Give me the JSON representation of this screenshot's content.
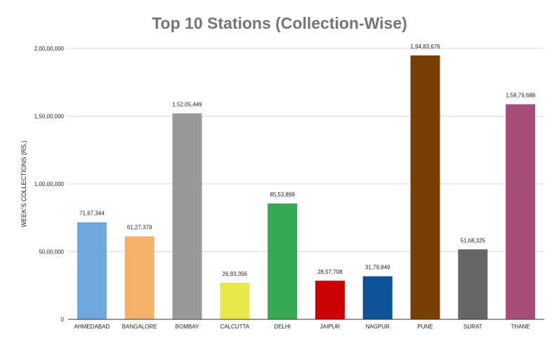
{
  "chart_data": {
    "type": "bar",
    "title": "Top 10 Stations (Collection-Wise)",
    "xlabel": "",
    "ylabel": "WEEK'S COLLECTIONS (RS.)",
    "ylim": [
      0,
      20000000
    ],
    "grid": true,
    "legend": "none",
    "y_ticks": [
      {
        "value": 0,
        "label": "0"
      },
      {
        "value": 5000000,
        "label": "50,00,000"
      },
      {
        "value": 10000000,
        "label": "1,00,00,000"
      },
      {
        "value": 15000000,
        "label": "1,50,00,000"
      },
      {
        "value": 20000000,
        "label": "2,00,00,000"
      }
    ],
    "categories": [
      "AHMEDABAD",
      "BANGALORE",
      "BOMBAY",
      "CALCUTTA",
      "DELHI",
      "JAIPUR",
      "NAGPUR",
      "PUNE",
      "SURAT",
      "THANE"
    ],
    "values": [
      7167344,
      6127379,
      15205449,
      2693356,
      8553899,
      2857708,
      3179849,
      19483676,
      5168325,
      15879688
    ],
    "data_labels": [
      "71,67,344",
      "61,27,379",
      "1,52,05,449",
      "26,93,356",
      "85,53,899",
      "28,57,708",
      "31,79,849",
      "1,94,83,676",
      "51,68,325",
      "1,58,79,688"
    ],
    "colors": [
      "#6fa8dc",
      "#f6b26b",
      "#999999",
      "#e8e84a",
      "#34a853",
      "#cc0000",
      "#0b5394",
      "#783f04",
      "#666666",
      "#a64d79"
    ]
  }
}
